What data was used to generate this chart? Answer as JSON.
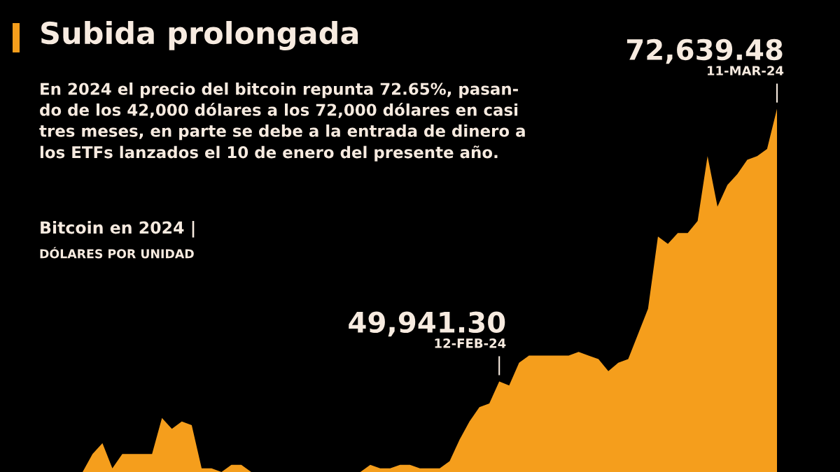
{
  "chart_data": {
    "type": "area",
    "title": "Subida prolongada",
    "subtitle": "En 2024 el precio del bitcoin repunta 72.65%, pasan-\ndo de los 42,000 dólares a los 72,000 dólares en casi\ntres meses, en parte se debe a la entrada de dinero a\nlos ETFs lanzados el 10 de enero del presente año.",
    "annotations": [
      "12-FEB-24",
      "11-MAR-24",
      "Bitcoin en 2024 |",
      "DÓLARES POR UNIDAD"
    ],
    "ylim": [
      42400,
      81700
    ],
    "tick_labels": false,
    "color": "#f59e1c",
    "categories": [
      null,
      null,
      null,
      null,
      null,
      null,
      null,
      null,
      null,
      null,
      null,
      null,
      null,
      null,
      null,
      null,
      null,
      null,
      null,
      null,
      null,
      null,
      null,
      null,
      null,
      null,
      null,
      null,
      null,
      null,
      null,
      null,
      null,
      null,
      null,
      null,
      null,
      null,
      null,
      null,
      null,
      null,
      null,
      null,
      null,
      null,
      null,
      null,
      null,
      null,
      null,
      null,
      null,
      null,
      null,
      null,
      null,
      null,
      null,
      null,
      null,
      null,
      null,
      null,
      null,
      null,
      null,
      null,
      null,
      null,
      null
    ],
    "values": [
      42400,
      43900,
      44800,
      42700,
      43900,
      43900,
      43900,
      43900,
      46900,
      46000,
      46600,
      46300,
      42700,
      42700,
      42400,
      43000,
      43000,
      42400,
      42400,
      42400,
      42400,
      42400,
      42400,
      42400,
      42400,
      42400,
      42400,
      42400,
      42400,
      43000,
      42700,
      42700,
      43000,
      43000,
      42700,
      42700,
      42700,
      43300,
      45100,
      46600,
      47800,
      48100,
      49941.3,
      49600,
      51500,
      52100,
      52100,
      52100,
      52100,
      52100,
      52400,
      52100,
      51800,
      50800,
      51500,
      51800,
      53900,
      56000,
      62000,
      61400,
      62300,
      62300,
      63300,
      68700,
      64500,
      66300,
      67200,
      68400,
      68700,
      69300,
      72639.48
    ],
    "value_labels": [
      null,
      null,
      null,
      null,
      null,
      null,
      null,
      null,
      null,
      null,
      null,
      null,
      null,
      null,
      null,
      null,
      null,
      null,
      null,
      null,
      null,
      null,
      null,
      null,
      null,
      null,
      null,
      null,
      null,
      null,
      null,
      null,
      null,
      null,
      null,
      null,
      null,
      null,
      null,
      null,
      null,
      null,
      "49,941.30",
      null,
      null,
      null,
      null,
      null,
      null,
      null,
      null,
      null,
      null,
      null,
      null,
      null,
      null,
      null,
      null,
      null,
      null,
      null,
      null,
      null,
      null,
      null,
      null,
      null,
      null,
      null,
      "72,639.48"
    ]
  }
}
